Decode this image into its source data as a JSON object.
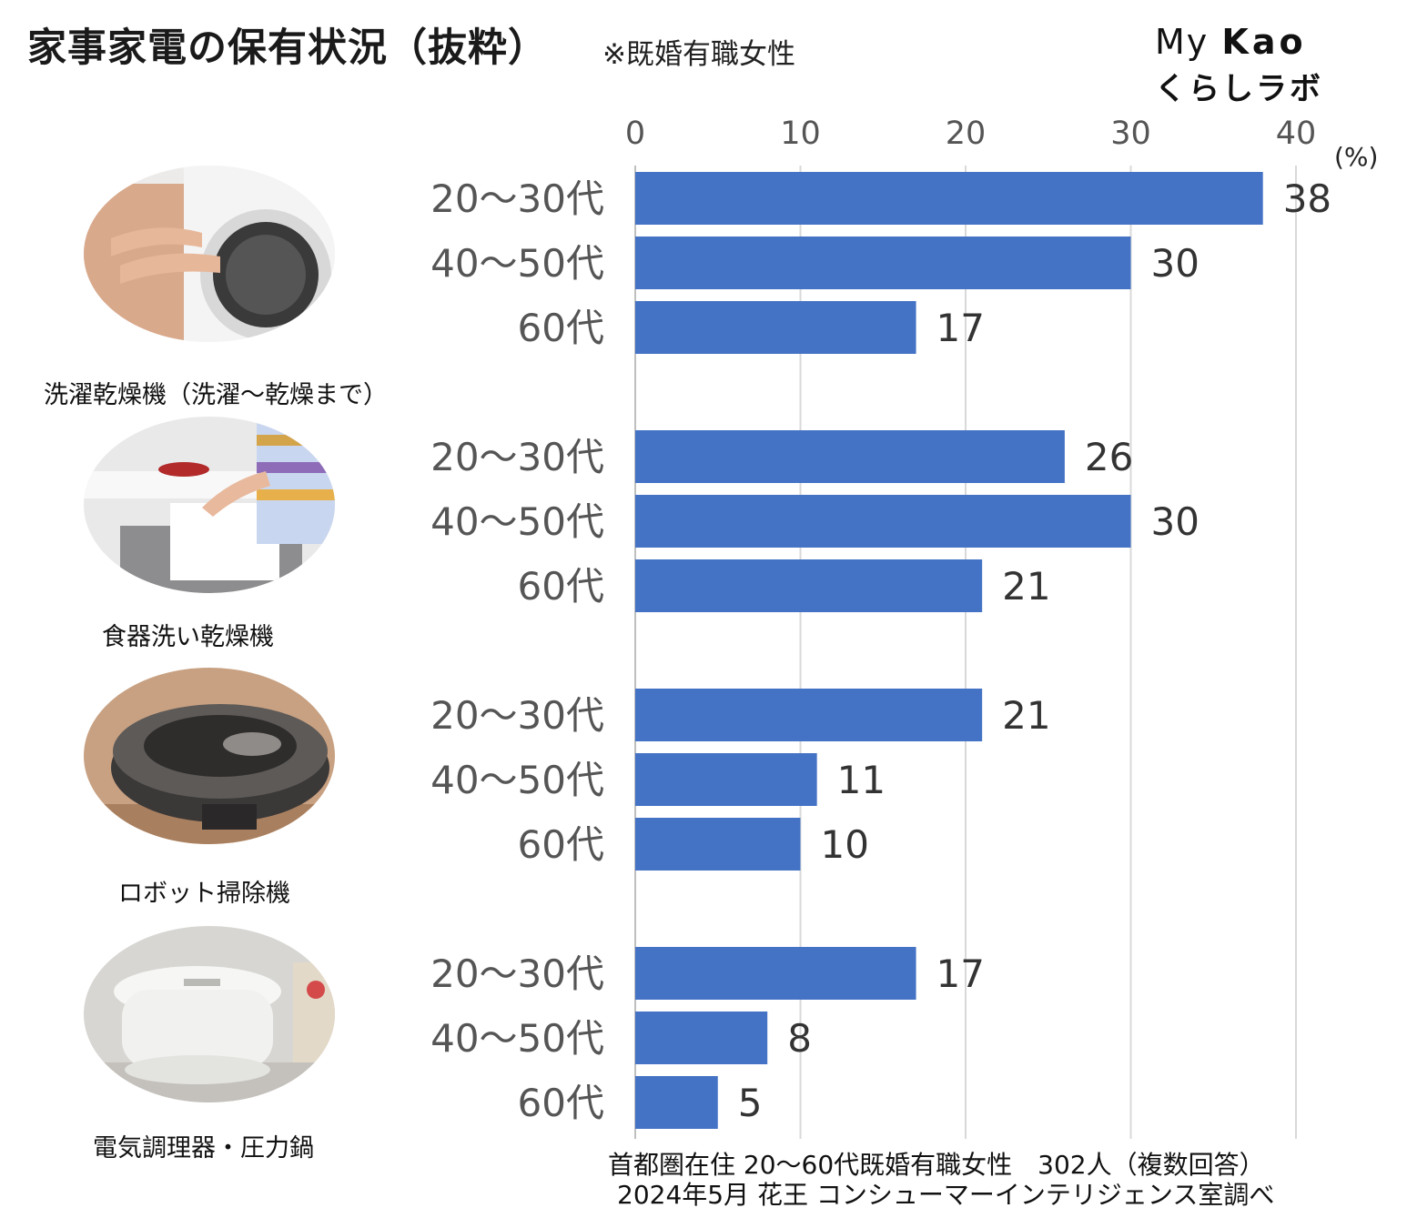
{
  "header": {
    "title": "家事家電の保有状況（抜粋）",
    "note": "※既婚有職女性",
    "logo_line1_prefix": "My",
    "logo_line1_brand": "Kao",
    "logo_line2": "くらしラボ"
  },
  "categories": [
    {
      "label": "洗濯乾燥機（洗濯～乾燥まで）",
      "icon": "washer-dryer-photo"
    },
    {
      "label": "食器洗い乾燥機",
      "icon": "dishwasher-photo"
    },
    {
      "label": "ロボット掃除機",
      "icon": "robot-vacuum-photo"
    },
    {
      "label": "電気調理器・圧力鍋",
      "icon": "electric-cooker-photo"
    }
  ],
  "chart_data": {
    "type": "bar",
    "orientation": "horizontal",
    "unit": "(%)",
    "xlim": [
      0,
      40
    ],
    "ticks": [
      0,
      10,
      20,
      30,
      40
    ],
    "grid": true,
    "bar_color": "#4472C4",
    "groups": [
      {
        "category": "洗濯乾燥機（洗濯～乾燥まで）",
        "rows": [
          {
            "label": "20～30代",
            "value": 38
          },
          {
            "label": "40～50代",
            "value": 30
          },
          {
            "label": "60代",
            "value": 17
          }
        ]
      },
      {
        "category": "食器洗い乾燥機",
        "rows": [
          {
            "label": "20～30代",
            "value": 26
          },
          {
            "label": "40～50代",
            "value": 30
          },
          {
            "label": "60代",
            "value": 21
          }
        ]
      },
      {
        "category": "ロボット掃除機",
        "rows": [
          {
            "label": "20～30代",
            "value": 21
          },
          {
            "label": "40～50代",
            "value": 11
          },
          {
            "label": "60代",
            "value": 10
          }
        ]
      },
      {
        "category": "電気調理器・圧力鍋",
        "rows": [
          {
            "label": "20～30代",
            "value": 17
          },
          {
            "label": "40～50代",
            "value": 8
          },
          {
            "label": "60代",
            "value": 5
          }
        ]
      }
    ]
  },
  "footer": {
    "line1": "首都圏在住 20～60代既婚有職女性　302人（複数回答）",
    "line2": "2024年5月 花王 コンシューマーインテリジェンス室調べ"
  }
}
